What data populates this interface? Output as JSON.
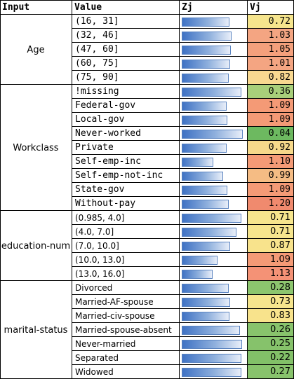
{
  "header": {
    "input": "Input",
    "value": "Value",
    "zj": "Zj",
    "vj": "Vj"
  },
  "groups": [
    {
      "label": "Age",
      "font": "mono",
      "rows": [
        {
          "value": "(16, 31]",
          "zj": 0.76,
          "vj": "0.72",
          "color": "#f6e58d"
        },
        {
          "value": "(32, 46]",
          "zj": 0.8,
          "vj": "1.03",
          "color": "#f4a582"
        },
        {
          "value": "(47, 60]",
          "zj": 0.79,
          "vj": "1.05",
          "color": "#f4a07c"
        },
        {
          "value": "(60, 75]",
          "zj": 0.77,
          "vj": "1.01",
          "color": "#f4a582"
        },
        {
          "value": "(75, 90]",
          "zj": 0.75,
          "vj": "0.82",
          "color": "#f8d890"
        }
      ]
    },
    {
      "label": "Workclass",
      "font": "mono",
      "rows": [
        {
          "value": "!missing",
          "zj": 0.96,
          "vj": "0.36",
          "color": "#a8cf7a"
        },
        {
          "value": "Federal-gov",
          "zj": 0.72,
          "vj": "1.09",
          "color": "#f49a76"
        },
        {
          "value": "Local-gov",
          "zj": 0.73,
          "vj": "1.09",
          "color": "#f49a76"
        },
        {
          "value": "Never-worked",
          "zj": 0.98,
          "vj": "0.04",
          "color": "#6db960"
        },
        {
          "value": "Private",
          "zj": 0.72,
          "vj": "0.92",
          "color": "#f6d88a"
        },
        {
          "value": "Self-emp-inc",
          "zj": 0.5,
          "vj": "1.10",
          "color": "#f49a76"
        },
        {
          "value": "Self-emp-not-inc",
          "zj": 0.66,
          "vj": "0.99",
          "color": "#f5bc84"
        },
        {
          "value": "State-gov",
          "zj": 0.73,
          "vj": "1.09",
          "color": "#f49a76"
        },
        {
          "value": "Without-pay",
          "zj": 0.75,
          "vj": "1.20",
          "color": "#f08a6e"
        }
      ]
    },
    {
      "label": "education-num",
      "font": "sans",
      "rows": [
        {
          "value": "(0.985, 4.0]",
          "zj": 0.95,
          "vj": "0.71",
          "color": "#f6e58d"
        },
        {
          "value": "(4.0, 7.0]",
          "zj": 0.88,
          "vj": "0.71",
          "color": "#f6e58d"
        },
        {
          "value": "(7.0, 10.0]",
          "zj": 0.77,
          "vj": "0.87",
          "color": "#f8e38c"
        },
        {
          "value": "(10.0, 13.0]",
          "zj": 0.57,
          "vj": "1.09",
          "color": "#f49a76"
        },
        {
          "value": "(13.0, 16.0]",
          "zj": 0.49,
          "vj": "1.13",
          "color": "#f49276"
        }
      ]
    },
    {
      "label": "marital-status",
      "font": "sans",
      "rows": [
        {
          "value": "Divorced",
          "zj": 0.75,
          "vj": "0.28",
          "color": "#8cc56e"
        },
        {
          "value": "Married-AF-spouse",
          "zj": 0.78,
          "vj": "0.73",
          "color": "#f6e58d"
        },
        {
          "value": "Married-civ-spouse",
          "zj": 0.76,
          "vj": "0.83",
          "color": "#f8e38c"
        },
        {
          "value": "Married-spouse-absent",
          "zj": 0.93,
          "vj": "0.26",
          "color": "#88c36c"
        },
        {
          "value": "Never-married",
          "zj": 0.97,
          "vj": "0.25",
          "color": "#86c26b"
        },
        {
          "value": "Separated",
          "zj": 0.96,
          "vj": "0.22",
          "color": "#82c068"
        },
        {
          "value": "Widowed",
          "zj": 0.95,
          "vj": "0.27",
          "color": "#88c36c"
        }
      ]
    }
  ]
}
